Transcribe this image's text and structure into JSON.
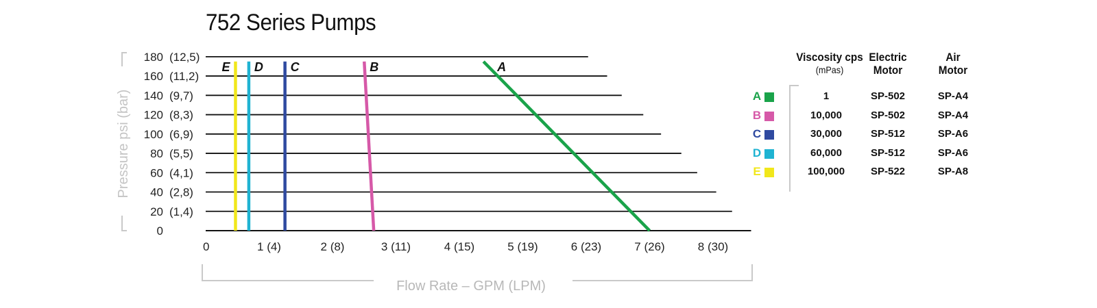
{
  "chart_data": {
    "type": "line",
    "title": "752 Series Pumps",
    "xlabel": "Flow Rate – GPM (LPM)",
    "ylabel": "Pressure psi (bar)",
    "xlim": [
      0,
      8.6
    ],
    "ylim": [
      0,
      180
    ],
    "x_ticks": [
      {
        "value": 0,
        "label": "0"
      },
      {
        "value": 1,
        "label": "1 (4)"
      },
      {
        "value": 2,
        "label": "2 (8)"
      },
      {
        "value": 3,
        "label": "3 (11)"
      },
      {
        "value": 4,
        "label": "4 (15)"
      },
      {
        "value": 5,
        "label": "5 (19)"
      },
      {
        "value": 6,
        "label": "6 (23)"
      },
      {
        "value": 7,
        "label": "7 (26)"
      },
      {
        "value": 8,
        "label": "8 (30)"
      }
    ],
    "y_ticks": [
      {
        "value": 0,
        "psi": "0",
        "bar": ""
      },
      {
        "value": 20,
        "psi": "20",
        "bar": "(1,4)"
      },
      {
        "value": 40,
        "psi": "40",
        "bar": "(2,8)"
      },
      {
        "value": 60,
        "psi": "60",
        "bar": "(4,1)"
      },
      {
        "value": 80,
        "psi": "80",
        "bar": "(5,5)"
      },
      {
        "value": 100,
        "psi": "100",
        "bar": "(6,9)"
      },
      {
        "value": 120,
        "psi": "120",
        "bar": "(8,3)"
      },
      {
        "value": 140,
        "psi": "140",
        "bar": "(9,7)"
      },
      {
        "value": 160,
        "psi": "160",
        "bar": "(11,2)"
      },
      {
        "value": 180,
        "psi": "180",
        "bar": "(12,5)"
      }
    ],
    "gridline_ends": [
      {
        "y": 20,
        "x_end": 8.3
      },
      {
        "y": 40,
        "x_end": 8.05
      },
      {
        "y": 60,
        "x_end": 7.75
      },
      {
        "y": 80,
        "x_end": 7.5
      },
      {
        "y": 100,
        "x_end": 7.18
      },
      {
        "y": 120,
        "x_end": 6.9
      },
      {
        "y": 140,
        "x_end": 6.56
      },
      {
        "y": 160,
        "x_end": 6.33
      },
      {
        "y": 180,
        "x_end": 6.03
      }
    ],
    "series": [
      {
        "name": "A",
        "color": "#1aa34a",
        "points": [
          [
            4.38,
            175
          ],
          [
            7.0,
            0
          ]
        ]
      },
      {
        "name": "B",
        "color": "#d659a8",
        "points": [
          [
            2.5,
            175
          ],
          [
            2.65,
            0
          ]
        ]
      },
      {
        "name": "C",
        "color": "#2f4aa0",
        "points": [
          [
            1.25,
            175
          ],
          [
            1.25,
            0
          ]
        ]
      },
      {
        "name": "D",
        "color": "#1fb3d2",
        "points": [
          [
            0.68,
            175
          ],
          [
            0.68,
            0
          ]
        ]
      },
      {
        "name": "E",
        "color": "#f1e71b",
        "points": [
          [
            0.47,
            175
          ],
          [
            0.47,
            0
          ]
        ]
      }
    ],
    "grid": true
  },
  "legend": {
    "headers": {
      "viscosity": "Viscosity cps",
      "viscosity_unit": "(mPas)",
      "electric_line1": "Electric",
      "electric_line2": "Motor",
      "air_line1": "Air",
      "air_line2": "Motor"
    },
    "rows": [
      {
        "letter": "A",
        "color": "#1aa34a",
        "viscosity": "1",
        "electric": "SP-502",
        "air": "SP-A4"
      },
      {
        "letter": "B",
        "color": "#d659a8",
        "viscosity": "10,000",
        "electric": "SP-502",
        "air": "SP-A4"
      },
      {
        "letter": "C",
        "color": "#2f4aa0",
        "viscosity": "30,000",
        "electric": "SP-512",
        "air": "SP-A6"
      },
      {
        "letter": "D",
        "color": "#1fb3d2",
        "viscosity": "60,000",
        "electric": "SP-512",
        "air": "SP-A6"
      },
      {
        "letter": "E",
        "color": "#f1e71b",
        "viscosity": "100,000",
        "electric": "SP-522",
        "air": "SP-A8"
      }
    ]
  }
}
